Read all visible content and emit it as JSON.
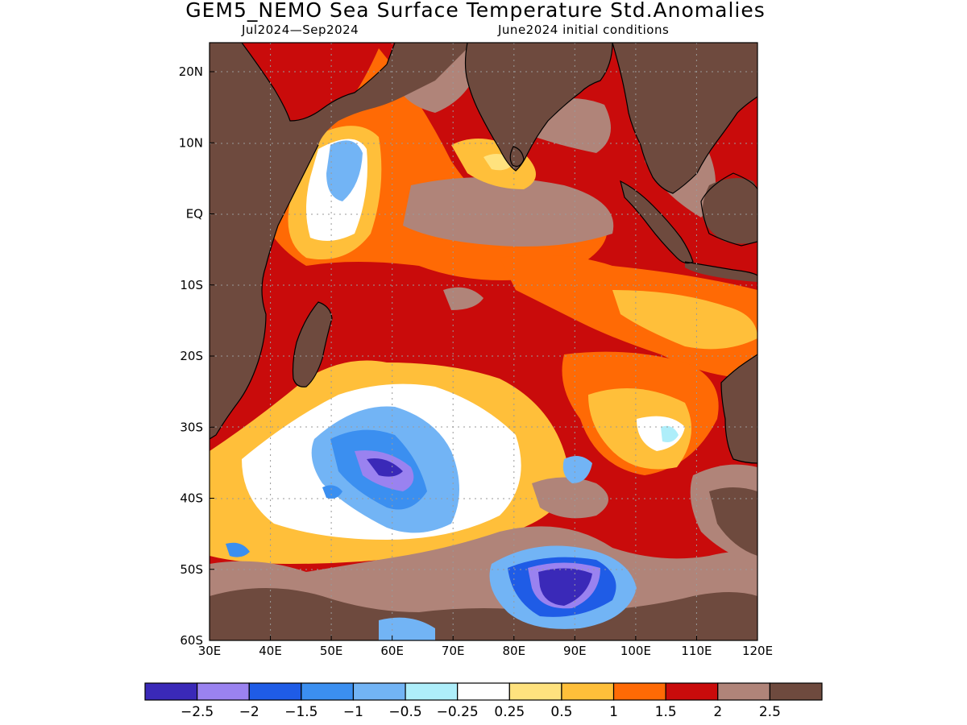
{
  "title": "GEM5_NEMO Sea Surface Temperature Std.Anomalies",
  "subtitle_left": "Jul2024—Sep2024",
  "subtitle_right": "June2024 initial conditions",
  "lon_ticks": [
    "30E",
    "40E",
    "50E",
    "60E",
    "70E",
    "80E",
    "90E",
    "100E",
    "110E",
    "120E"
  ],
  "lat_ticks": [
    "20N",
    "10N",
    "EQ",
    "10S",
    "20S",
    "30S",
    "40S",
    "50S",
    "60S"
  ],
  "colorbar": {
    "colors": [
      "#3a29b8",
      "#9a82f0",
      "#1f5ce6",
      "#3b8ff0",
      "#72b4f5",
      "#aeeefa",
      "#ffffff",
      "#ffe27e",
      "#ffbf3a",
      "#ff6a05",
      "#c90b0b",
      "#b08479",
      "#6e4a3e"
    ],
    "labels": [
      "−2.5",
      "−2",
      "−1.5",
      "−1",
      "−0.5",
      "−0.25",
      "0.25",
      "0.5",
      "1",
      "1.5",
      "2",
      "2.5"
    ]
  },
  "colors": {
    "land": "#6e4a3e",
    "ocean_base": "#c90b0b"
  }
}
